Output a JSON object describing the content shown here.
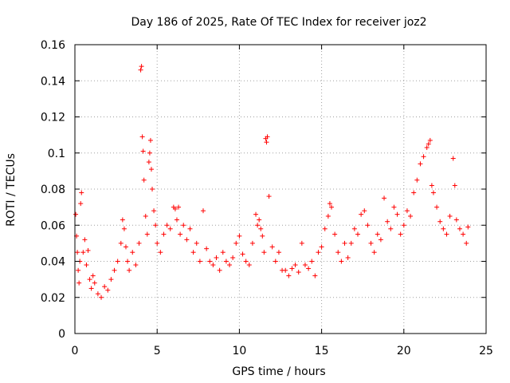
{
  "chart_data": {
    "type": "scatter",
    "title": "Day 186 of 2025, Rate Of TEC Index for receiver joz2",
    "xlabel": "GPS time / hours",
    "ylabel": "ROTI / TECUs",
    "xlim": [
      0,
      25
    ],
    "ylim": [
      0,
      0.16
    ],
    "xticks": [
      0,
      5,
      10,
      15,
      20,
      25
    ],
    "yticks": [
      0,
      0.02,
      0.04,
      0.06,
      0.08,
      0.1,
      0.12,
      0.14,
      0.16
    ],
    "xtick_labels": [
      "0",
      "5",
      "10",
      "15",
      "20",
      "25"
    ],
    "ytick_labels": [
      "0",
      "0.02",
      "0.04",
      "0.06",
      "0.08",
      "0.1",
      "0.12",
      "0.14",
      "0.16"
    ],
    "grid": true,
    "marker": "plus",
    "color": "#ff0000",
    "series": [
      {
        "name": "ROTI",
        "x": [
          0.05,
          0.1,
          0.15,
          0.2,
          0.25,
          0.3,
          0.35,
          0.4,
          0.5,
          0.6,
          0.7,
          0.8,
          0.9,
          1.0,
          1.1,
          1.2,
          1.4,
          1.6,
          1.8,
          2.0,
          2.2,
          2.4,
          2.6,
          2.8,
          2.9,
          3.0,
          3.1,
          3.2,
          3.3,
          3.5,
          3.7,
          3.9,
          4.0,
          4.05,
          4.1,
          4.15,
          4.2,
          4.3,
          4.4,
          4.5,
          4.55,
          4.6,
          4.65,
          4.7,
          4.8,
          4.9,
          5.0,
          5.2,
          5.4,
          5.6,
          5.8,
          6.0,
          6.1,
          6.2,
          6.3,
          6.4,
          6.6,
          6.8,
          7.0,
          7.2,
          7.4,
          7.6,
          7.8,
          8.0,
          8.2,
          8.4,
          8.6,
          8.8,
          9.0,
          9.2,
          9.4,
          9.6,
          9.8,
          10.0,
          10.2,
          10.4,
          10.6,
          10.8,
          11.0,
          11.1,
          11.2,
          11.3,
          11.4,
          11.5,
          11.6,
          11.65,
          11.7,
          11.8,
          12.0,
          12.2,
          12.4,
          12.6,
          12.8,
          13.0,
          13.2,
          13.4,
          13.6,
          13.8,
          14.0,
          14.2,
          14.4,
          14.6,
          14.8,
          15.0,
          15.2,
          15.4,
          15.5,
          15.6,
          15.8,
          16.0,
          16.2,
          16.4,
          16.6,
          16.8,
          17.0,
          17.2,
          17.4,
          17.6,
          17.8,
          18.0,
          18.2,
          18.4,
          18.6,
          18.8,
          19.0,
          19.2,
          19.4,
          19.6,
          19.8,
          20.0,
          20.2,
          20.4,
          20.6,
          20.8,
          21.0,
          21.2,
          21.4,
          21.5,
          21.6,
          21.7,
          21.8,
          22.0,
          22.2,
          22.4,
          22.6,
          22.8,
          23.0,
          23.1,
          23.2,
          23.4,
          23.6,
          23.8,
          23.9
        ],
        "y": [
          0.066,
          0.054,
          0.045,
          0.035,
          0.028,
          0.04,
          0.072,
          0.078,
          0.045,
          0.052,
          0.038,
          0.046,
          0.03,
          0.025,
          0.032,
          0.028,
          0.022,
          0.02,
          0.026,
          0.024,
          0.03,
          0.035,
          0.04,
          0.05,
          0.063,
          0.058,
          0.048,
          0.04,
          0.035,
          0.045,
          0.038,
          0.05,
          0.146,
          0.148,
          0.109,
          0.101,
          0.085,
          0.065,
          0.055,
          0.095,
          0.1,
          0.107,
          0.091,
          0.08,
          0.068,
          0.06,
          0.05,
          0.045,
          0.055,
          0.06,
          0.058,
          0.07,
          0.069,
          0.063,
          0.07,
          0.055,
          0.06,
          0.052,
          0.058,
          0.045,
          0.05,
          0.04,
          0.068,
          0.047,
          0.04,
          0.038,
          0.042,
          0.035,
          0.045,
          0.04,
          0.038,
          0.042,
          0.05,
          0.054,
          0.044,
          0.04,
          0.038,
          0.05,
          0.066,
          0.06,
          0.063,
          0.058,
          0.054,
          0.045,
          0.108,
          0.106,
          0.109,
          0.076,
          0.048,
          0.04,
          0.045,
          0.035,
          0.035,
          0.032,
          0.036,
          0.038,
          0.034,
          0.05,
          0.038,
          0.036,
          0.04,
          0.032,
          0.045,
          0.048,
          0.058,
          0.065,
          0.072,
          0.07,
          0.055,
          0.045,
          0.04,
          0.05,
          0.042,
          0.05,
          0.058,
          0.055,
          0.066,
          0.068,
          0.06,
          0.05,
          0.045,
          0.055,
          0.052,
          0.075,
          0.062,
          0.058,
          0.07,
          0.066,
          0.055,
          0.06,
          0.068,
          0.065,
          0.078,
          0.085,
          0.094,
          0.098,
          0.103,
          0.105,
          0.107,
          0.082,
          0.078,
          0.07,
          0.062,
          0.058,
          0.055,
          0.065,
          0.097,
          0.082,
          0.063,
          0.058,
          0.055,
          0.05,
          0.059
        ]
      }
    ]
  }
}
